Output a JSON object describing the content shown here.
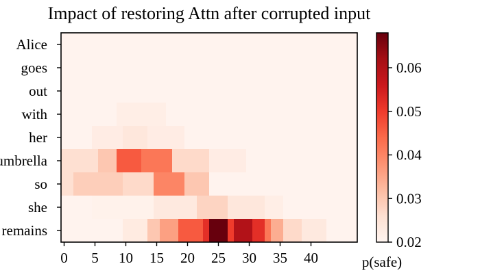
{
  "chart_data": {
    "type": "heatmap",
    "title": "Impact of restoring Attn after corrupted input",
    "rows": [
      "Alice",
      "goes",
      "out",
      "with",
      "her",
      "umbrella",
      "so",
      "she",
      "remains"
    ],
    "x_ticks": [
      0,
      5,
      10,
      15,
      20,
      25,
      30,
      35,
      40
    ],
    "num_columns": 48,
    "colormap": "Reds",
    "colorbar": {
      "label": "p(safe)",
      "min": 0.02,
      "max": 0.068,
      "ticks": [
        0.02,
        0.03,
        0.04,
        0.05,
        0.06
      ],
      "tick_labels": [
        "0.02",
        "0.03",
        "0.04",
        "0.05",
        "0.06"
      ]
    },
    "base_value": 0.0205,
    "hotspots": [
      {
        "row": "with",
        "x_from": 9,
        "x_to": 17,
        "value": 0.022
      },
      {
        "row": "her",
        "x_from": 5,
        "x_to": 20,
        "value": 0.0225
      },
      {
        "row": "her",
        "x_from": 10,
        "x_to": 14,
        "value": 0.024
      },
      {
        "row": "umbrella",
        "x_from": 0,
        "x_to": 6,
        "value": 0.026
      },
      {
        "row": "umbrella",
        "x_from": 6,
        "x_to": 9,
        "value": 0.03
      },
      {
        "row": "umbrella",
        "x_from": 9,
        "x_to": 13,
        "value": 0.046
      },
      {
        "row": "umbrella",
        "x_from": 13,
        "x_to": 18,
        "value": 0.042
      },
      {
        "row": "umbrella",
        "x_from": 18,
        "x_to": 24,
        "value": 0.027
      },
      {
        "row": "umbrella",
        "x_from": 24,
        "x_to": 30,
        "value": 0.0225
      },
      {
        "row": "so",
        "x_from": 0,
        "x_to": 2,
        "value": 0.026
      },
      {
        "row": "so",
        "x_from": 2,
        "x_to": 10,
        "value": 0.029
      },
      {
        "row": "so",
        "x_from": 10,
        "x_to": 15,
        "value": 0.027
      },
      {
        "row": "so",
        "x_from": 15,
        "x_to": 20,
        "value": 0.04
      },
      {
        "row": "so",
        "x_from": 20,
        "x_to": 24,
        "value": 0.03
      },
      {
        "row": "she",
        "x_from": 5,
        "x_to": 15,
        "value": 0.021
      },
      {
        "row": "she",
        "x_from": 15,
        "x_to": 22,
        "value": 0.0235
      },
      {
        "row": "she",
        "x_from": 22,
        "x_to": 27,
        "value": 0.028
      },
      {
        "row": "she",
        "x_from": 27,
        "x_to": 33,
        "value": 0.024
      },
      {
        "row": "she",
        "x_from": 33,
        "x_to": 36,
        "value": 0.022
      },
      {
        "row": "remains",
        "x_from": 10,
        "x_to": 14,
        "value": 0.023
      },
      {
        "row": "remains",
        "x_from": 14,
        "x_to": 16,
        "value": 0.03
      },
      {
        "row": "remains",
        "x_from": 16,
        "x_to": 19,
        "value": 0.036
      },
      {
        "row": "remains",
        "x_from": 19,
        "x_to": 23,
        "value": 0.046
      },
      {
        "row": "remains",
        "x_from": 23,
        "x_to": 24,
        "value": 0.052
      },
      {
        "row": "remains",
        "x_from": 24,
        "x_to": 27,
        "value": 0.068
      },
      {
        "row": "remains",
        "x_from": 27,
        "x_to": 28,
        "value": 0.05
      },
      {
        "row": "remains",
        "x_from": 28,
        "x_to": 31,
        "value": 0.06
      },
      {
        "row": "remains",
        "x_from": 31,
        "x_to": 33,
        "value": 0.052
      },
      {
        "row": "remains",
        "x_from": 33,
        "x_to": 34,
        "value": 0.042
      },
      {
        "row": "remains",
        "x_from": 34,
        "x_to": 36,
        "value": 0.034
      },
      {
        "row": "remains",
        "x_from": 36,
        "x_to": 39,
        "value": 0.027
      },
      {
        "row": "remains",
        "x_from": 39,
        "x_to": 43,
        "value": 0.0235
      }
    ]
  }
}
